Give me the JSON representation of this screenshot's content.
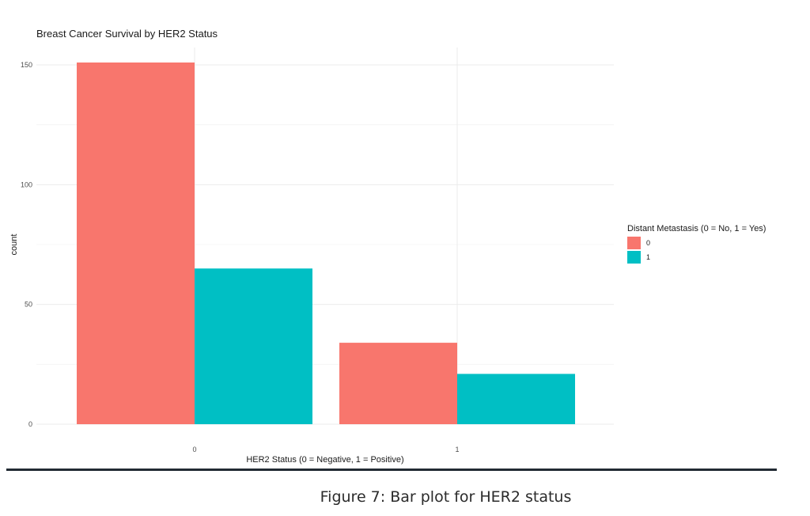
{
  "chart_data": {
    "type": "bar",
    "title": "Breast Cancer Survival by HER2 Status",
    "xlabel": "HER2 Status (0 = Negative, 1 = Positive)",
    "ylabel": "count",
    "categories": [
      "0",
      "1"
    ],
    "series": [
      {
        "name": "0",
        "color": "#F8766D",
        "values": [
          151,
          34
        ]
      },
      {
        "name": "1",
        "color": "#00BFC4",
        "values": [
          65,
          21
        ]
      }
    ],
    "yticks": [
      0,
      50,
      100,
      150
    ],
    "ylim": [
      0,
      155
    ],
    "grid": true,
    "legend": {
      "title": "Distant Metastasis (0 = No, 1 = Yes)",
      "placement": "right"
    }
  },
  "caption": "Figure 7: Bar plot for HER2 status"
}
